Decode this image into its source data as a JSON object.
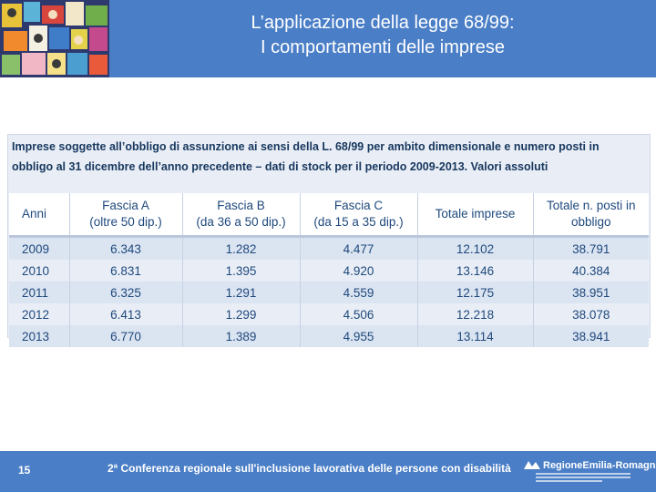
{
  "header": {
    "title_line1": "L’applicazione della legge 68/99:",
    "title_line2": "I comportamenti delle imprese"
  },
  "table": {
    "caption": "Imprese soggette all’obbligo di assunzione ai sensi della L. 68/99 per ambito dimensionale e numero posti in obbligo al 31 dicembre dell’anno precedente – dati di stock per il periodo 2009-2013. Valori assoluti",
    "columns": [
      {
        "line1": "Anni",
        "line2": ""
      },
      {
        "line1": "Fascia A",
        "line2": "(oltre 50 dip.)"
      },
      {
        "line1": "Fascia B",
        "line2": "(da 36 a 50 dip.)"
      },
      {
        "line1": "Fascia C",
        "line2": "(da 15 a 35 dip.)"
      },
      {
        "line1": "Totale imprese",
        "line2": ""
      },
      {
        "line1": "Totale n. posti in",
        "line2": "obbligo"
      }
    ],
    "rows": [
      [
        "2009",
        "6.343",
        "1.282",
        "4.477",
        "12.102",
        "38.791"
      ],
      [
        "2010",
        "6.831",
        "1.395",
        "4.920",
        "13.146",
        "40.384"
      ],
      [
        "2011",
        "6.325",
        "1.291",
        "4.559",
        "12.175",
        "38.951"
      ],
      [
        "2012",
        "6.413",
        "1.299",
        "4.506",
        "12.218",
        "38.078"
      ],
      [
        "2013",
        "6.770",
        "1.389",
        "4.955",
        "13.114",
        "38.941"
      ]
    ]
  },
  "footer": {
    "page_number": "15",
    "conference": "2ª Conferenza regionale sull'inclusione lavorativa delle persone con disabilità",
    "logo_text": "RegioneEmilia-Romagna"
  },
  "colors": {
    "band": "#4a7ec6",
    "table_text": "#1f497d",
    "caption_text": "#17375e"
  }
}
